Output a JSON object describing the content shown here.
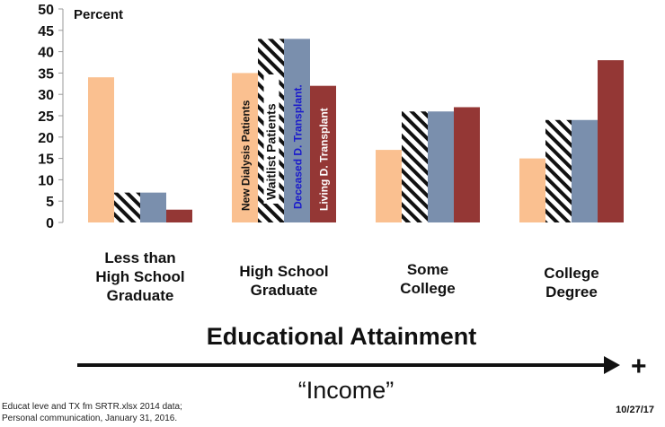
{
  "chart_data": {
    "type": "bar",
    "ylabel": "Percent",
    "ylim": [
      0,
      50
    ],
    "yticks": [
      0,
      5,
      10,
      15,
      20,
      25,
      30,
      35,
      40,
      45,
      50
    ],
    "categories": [
      "Less than\nHigh School\nGraduate",
      "High School\nGraduate",
      "Some\nCollege",
      "College\nDegree"
    ],
    "series": [
      {
        "name": "New Dialysis Patients",
        "values": [
          34,
          35,
          17,
          15
        ],
        "color": "#fac090",
        "pattern": "solid"
      },
      {
        "name": "Waitlist Patients",
        "values": [
          7,
          43,
          26,
          24
        ],
        "color": "#111111",
        "pattern": "diagonal-stripes"
      },
      {
        "name": "Deceased D. Transplant.",
        "values": [
          7,
          43,
          26,
          24
        ],
        "color": "#7a8fad",
        "pattern": "solid"
      },
      {
        "name": "Living D. Transplant",
        "values": [
          3,
          32,
          27,
          38
        ],
        "color": "#943735",
        "pattern": "solid"
      }
    ],
    "series_label_colors": [
      "#111111",
      "#111111",
      "#1a1acc",
      "#ffffff"
    ],
    "xlabel": "Educational Attainment",
    "grid": false,
    "legend": "inline-in-bars"
  },
  "arrow_label": "“Income”",
  "plus_label": "+",
  "footnote": "Educat leve and TX fm SRTR.xlsx  2014 data;\nPersonal communication, January 31, 2016.",
  "date": "10/27/17"
}
